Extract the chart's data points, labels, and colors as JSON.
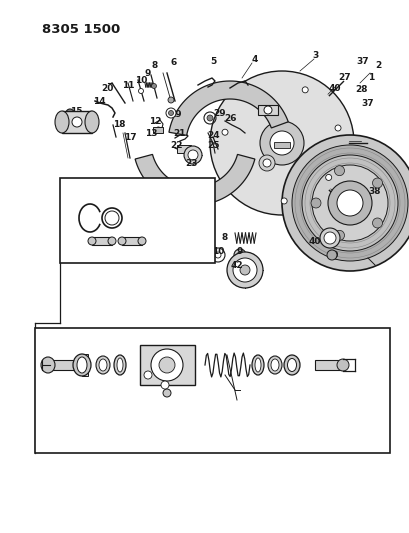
{
  "title": "8305 1500",
  "bg_color": "#ffffff",
  "line_color": "#1a1a1a",
  "fig_width": 4.1,
  "fig_height": 5.33,
  "dpi": 100
}
